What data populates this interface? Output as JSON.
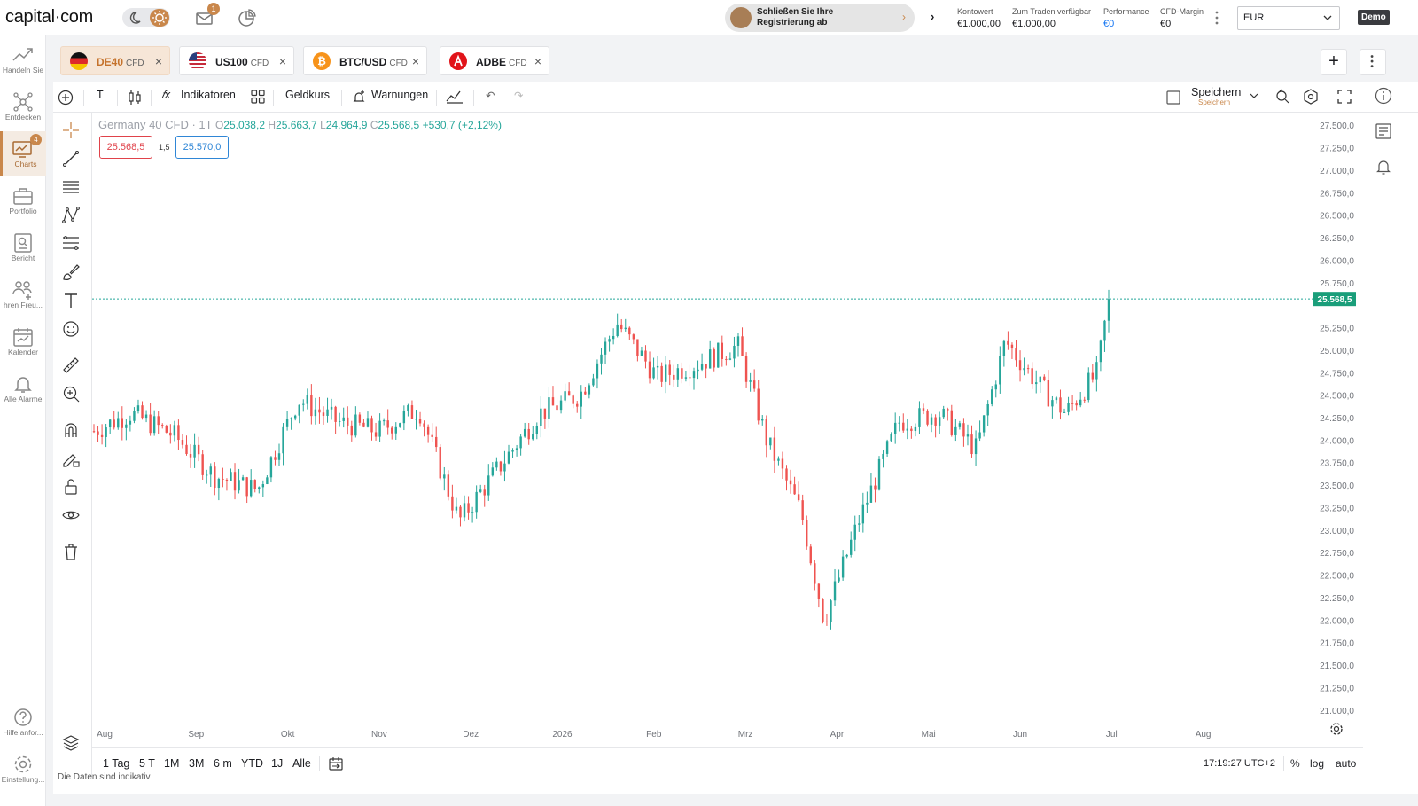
{
  "app": {
    "logo_text": "capital·com",
    "mail_badge": "1",
    "register_banner": "Schließen Sie Ihre Registrierung ab",
    "account": [
      {
        "label": "Kontowert",
        "value": "€1.000,00",
        "highlight": false
      },
      {
        "label": "Zum Traden verfügbar",
        "value": "€1.000,00",
        "highlight": false
      },
      {
        "label": "Performance",
        "value": "€0",
        "highlight": true
      },
      {
        "label": "CFD-Margin",
        "value": "€0",
        "highlight": false
      }
    ],
    "currency": "EUR",
    "mode_badge": "Demo"
  },
  "sidebar": {
    "items": [
      {
        "label": "Handeln Sie",
        "icon": "trade-icon"
      },
      {
        "label": "Entdecken",
        "icon": "discover-icon"
      },
      {
        "label": "Charts",
        "icon": "charts-icon",
        "badge": "4",
        "active": true
      },
      {
        "label": "Portfolio",
        "icon": "portfolio-icon"
      },
      {
        "label": "Bericht",
        "icon": "report-icon"
      },
      {
        "label": "hren Freu...",
        "icon": "invite-friends-icon"
      },
      {
        "label": "Kalender",
        "icon": "calendar-icon"
      },
      {
        "label": "Alle Alarme",
        "icon": "alarm-bell-icon"
      }
    ],
    "bottom_items": [
      {
        "label": "Hilfe anfor...",
        "icon": "help-icon"
      },
      {
        "label": "Einstellung...",
        "icon": "settings-icon"
      }
    ]
  },
  "tabs": [
    {
      "name": "DE40",
      "suffix": "CFD",
      "active": true,
      "flag": "de-flag-icon"
    },
    {
      "name": "US100",
      "suffix": "CFD",
      "active": false,
      "flag": "us-flag-icon"
    },
    {
      "name": "BTC/USD",
      "suffix": "CFD",
      "active": false,
      "flag": "bitcoin-icon"
    },
    {
      "name": "ADBE",
      "suffix": "CFD",
      "active": false,
      "flag": "adobe-icon"
    }
  ],
  "toolbar": {
    "interval": "T",
    "indicators": "Indikatoren",
    "price_type": "Geldkurs",
    "alerts": "Warnungen",
    "save": "Speichern",
    "save_sub": "Speichern"
  },
  "legend": {
    "symbol": "Germany 40 CFD · 1T",
    "open_k": "O",
    "open": "25.038,2",
    "high_k": "H",
    "high": "25.663,7",
    "low_k": "L",
    "low": "24.964,9",
    "close_k": "C",
    "close": "25.568,5",
    "change": "+530,7 (+2,12%)"
  },
  "quote": {
    "sell": "25.568,5",
    "spread": "1,5",
    "buy": "25.570,0"
  },
  "bottom": {
    "ranges": [
      "1 Tag",
      "5 T",
      "1M",
      "3M",
      "6 m",
      "YTD",
      "1J",
      "Alle"
    ],
    "time": "17:19:27 UTC+2",
    "percent": "%",
    "log": "log",
    "auto": "auto",
    "disclaimer": "Die Daten sind indikativ"
  },
  "colors": {
    "up": "#26a69a",
    "down": "#ef5350",
    "accent": "#c9874b"
  },
  "chart_data": {
    "type": "candlestick",
    "title": "Germany 40 CFD · 1T",
    "y_ticks": [
      "27.500,0",
      "27.250,0",
      "27.000,0",
      "26.750,0",
      "26.500,0",
      "26.250,0",
      "26.000,0",
      "25.750,0",
      "25.250,0",
      "25.000,0",
      "24.750,0",
      "24.500,0",
      "24.250,0",
      "24.000,0",
      "23.750,0",
      "23.500,0",
      "23.250,0",
      "23.000,0",
      "22.750,0",
      "22.500,0",
      "22.250,0",
      "22.000,0",
      "21.750,0",
      "21.500,0",
      "21.250,0",
      "21.000,0"
    ],
    "x_ticks": [
      "Aug",
      "Sep",
      "Okt",
      "Nov",
      "Dez",
      "2026",
      "Feb",
      "Mrz",
      "Apr",
      "Mai",
      "Jun",
      "Jul",
      "Aug"
    ],
    "ylim": [
      20900,
      27600
    ],
    "last_price_label": "25.568,5",
    "last_price": 25568.5,
    "close_path": [
      {
        "date": "2025-07-15",
        "close": 24100
      },
      {
        "date": "2025-07-28",
        "close": 24300
      },
      {
        "date": "2025-08-12",
        "close": 24050
      },
      {
        "date": "2025-08-26",
        "close": 23600
      },
      {
        "date": "2025-09-10",
        "close": 23450
      },
      {
        "date": "2025-09-24",
        "close": 24450
      },
      {
        "date": "2025-10-08",
        "close": 24200
      },
      {
        "date": "2025-10-22",
        "close": 24100
      },
      {
        "date": "2025-11-05",
        "close": 24350
      },
      {
        "date": "2025-11-19",
        "close": 23100
      },
      {
        "date": "2025-12-03",
        "close": 23700
      },
      {
        "date": "2025-12-17",
        "close": 24300
      },
      {
        "date": "2025-12-31",
        "close": 24500
      },
      {
        "date": "2026-01-13",
        "close": 25300
      },
      {
        "date": "2026-01-27",
        "close": 24700
      },
      {
        "date": "2026-02-10",
        "close": 24850
      },
      {
        "date": "2026-02-24",
        "close": 25050
      },
      {
        "date": "2026-03-06",
        "close": 24000
      },
      {
        "date": "2026-03-18",
        "close": 23200
      },
      {
        "date": "2026-03-26",
        "close": 22000
      },
      {
        "date": "2026-04-07",
        "close": 23100
      },
      {
        "date": "2026-04-21",
        "close": 24200
      },
      {
        "date": "2026-05-05",
        "close": 24300
      },
      {
        "date": "2026-05-18",
        "close": 23900
      },
      {
        "date": "2026-05-28",
        "close": 25100
      },
      {
        "date": "2026-06-09",
        "close": 24600
      },
      {
        "date": "2026-06-18",
        "close": 24300
      },
      {
        "date": "2026-06-29",
        "close": 24750
      },
      {
        "date": "2026-07-03",
        "close": 25568
      }
    ]
  }
}
